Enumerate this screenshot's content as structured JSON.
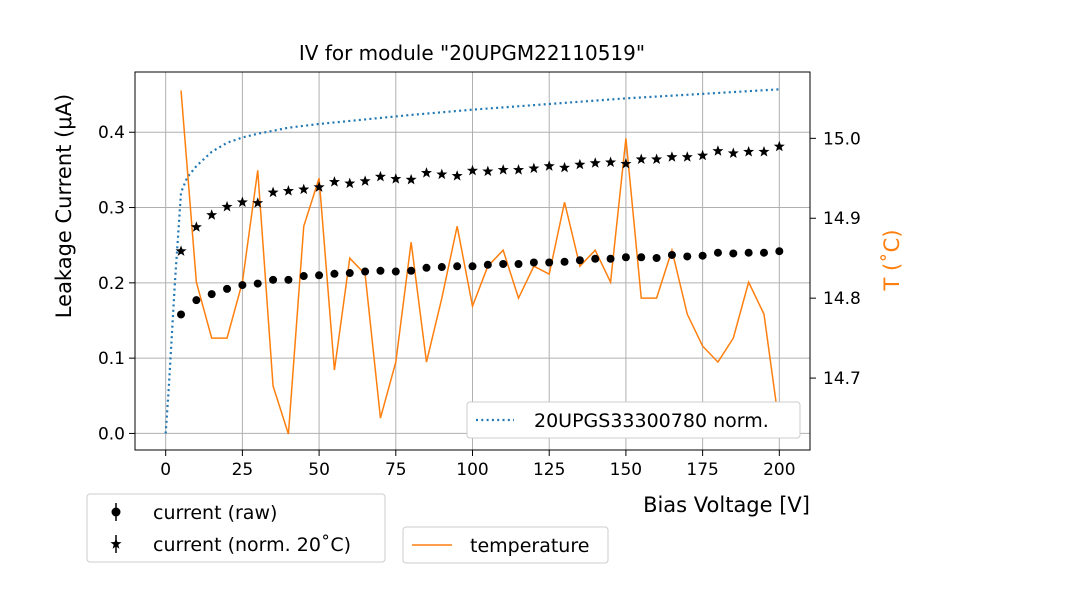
{
  "chart_data": {
    "type": "scatter",
    "title": "IV for module \"20UPGM22110519\"",
    "xlabel": "Bias Voltage [V]",
    "ylabel": "Leakage Current (μA)",
    "y2label": "T (˚C)",
    "xlim": [
      -10,
      210
    ],
    "ylim": [
      -0.022,
      0.48
    ],
    "y2lim": [
      14.61,
      15.083
    ],
    "xticks": [
      0,
      25,
      50,
      75,
      100,
      125,
      150,
      175,
      200
    ],
    "xtick_labels": [
      "0",
      "25",
      "50",
      "75",
      "100",
      "125",
      "150",
      "175",
      "200"
    ],
    "yticks": [
      0.0,
      0.1,
      0.2,
      0.3,
      0.4
    ],
    "ytick_labels": [
      "0.0",
      "0.1",
      "0.2",
      "0.3",
      "0.4"
    ],
    "y2ticks": [
      14.7,
      14.8,
      14.9,
      15.0
    ],
    "y2tick_labels": [
      "14.7",
      "14.8",
      "14.9",
      "15.0"
    ],
    "grid": true,
    "x": [
      5,
      10,
      15,
      20,
      25,
      30,
      35,
      40,
      45,
      50,
      55,
      60,
      65,
      70,
      75,
      80,
      85,
      90,
      95,
      100,
      105,
      110,
      115,
      120,
      125,
      130,
      135,
      140,
      145,
      150,
      155,
      160,
      165,
      170,
      175,
      180,
      185,
      190,
      195,
      200
    ],
    "series": [
      {
        "name": "current (raw)",
        "marker": "circle",
        "color": "#000000",
        "axis": "left",
        "values": [
          0.158,
          0.177,
          0.185,
          0.192,
          0.197,
          0.199,
          0.204,
          0.204,
          0.209,
          0.21,
          0.212,
          0.213,
          0.215,
          0.216,
          0.215,
          0.216,
          0.22,
          0.221,
          0.222,
          0.222,
          0.224,
          0.225,
          0.225,
          0.227,
          0.227,
          0.228,
          0.23,
          0.232,
          0.232,
          0.234,
          0.234,
          0.233,
          0.237,
          0.235,
          0.236,
          0.24,
          0.239,
          0.24,
          0.24,
          0.242
        ]
      },
      {
        "name": "current (norm. 20˚C)",
        "marker": "star",
        "color": "#000000",
        "axis": "left",
        "values": [
          0.242,
          0.274,
          0.29,
          0.301,
          0.307,
          0.306,
          0.32,
          0.322,
          0.324,
          0.327,
          0.334,
          0.332,
          0.335,
          0.341,
          0.338,
          0.337,
          0.346,
          0.344,
          0.342,
          0.349,
          0.348,
          0.35,
          0.35,
          0.352,
          0.355,
          0.353,
          0.357,
          0.359,
          0.36,
          0.358,
          0.364,
          0.364,
          0.367,
          0.367,
          0.369,
          0.375,
          0.372,
          0.374,
          0.374,
          0.381
        ]
      },
      {
        "name": "temperature",
        "line": "solid",
        "color": "#ff7f0e",
        "axis": "right",
        "x": [
          5,
          10,
          15,
          20,
          25,
          30,
          35,
          40,
          45,
          50,
          55,
          60,
          65,
          70,
          75,
          80,
          85,
          90,
          95,
          100,
          105,
          110,
          115,
          120,
          125,
          130,
          135,
          140,
          145,
          150,
          155,
          160,
          165,
          170,
          175,
          180,
          185,
          190,
          195,
          200
        ],
        "values": [
          15.06,
          14.82,
          14.75,
          14.75,
          14.82,
          14.96,
          14.69,
          14.63,
          14.89,
          14.95,
          14.71,
          14.85,
          14.83,
          14.65,
          14.72,
          14.87,
          14.72,
          14.8,
          14.89,
          14.79,
          14.84,
          14.86,
          14.8,
          14.84,
          14.83,
          14.92,
          14.84,
          14.86,
          14.82,
          15.0,
          14.8,
          14.8,
          14.86,
          14.78,
          14.74,
          14.72,
          14.75,
          14.82,
          14.78,
          14.64
        ]
      },
      {
        "name": "20UPGS33300780 norm.",
        "line": "dotted",
        "color": "#1f77b4",
        "axis": "left",
        "x": [
          0,
          1,
          2,
          3,
          4,
          5,
          7,
          10,
          15,
          20,
          25,
          30,
          40,
          50,
          60,
          80,
          100,
          120,
          150,
          175,
          200
        ],
        "values": [
          0.0,
          0.06,
          0.13,
          0.2,
          0.26,
          0.32,
          0.34,
          0.355,
          0.374,
          0.386,
          0.393,
          0.398,
          0.406,
          0.411,
          0.415,
          0.423,
          0.43,
          0.436,
          0.445,
          0.451,
          0.457
        ]
      }
    ]
  },
  "legends": {
    "main": {
      "label": "20UPGS33300780 norm."
    },
    "current": {
      "raw_label": "current (raw)",
      "norm_label": "current (norm. 20˚C)"
    },
    "temperature": {
      "label": "temperature"
    }
  }
}
